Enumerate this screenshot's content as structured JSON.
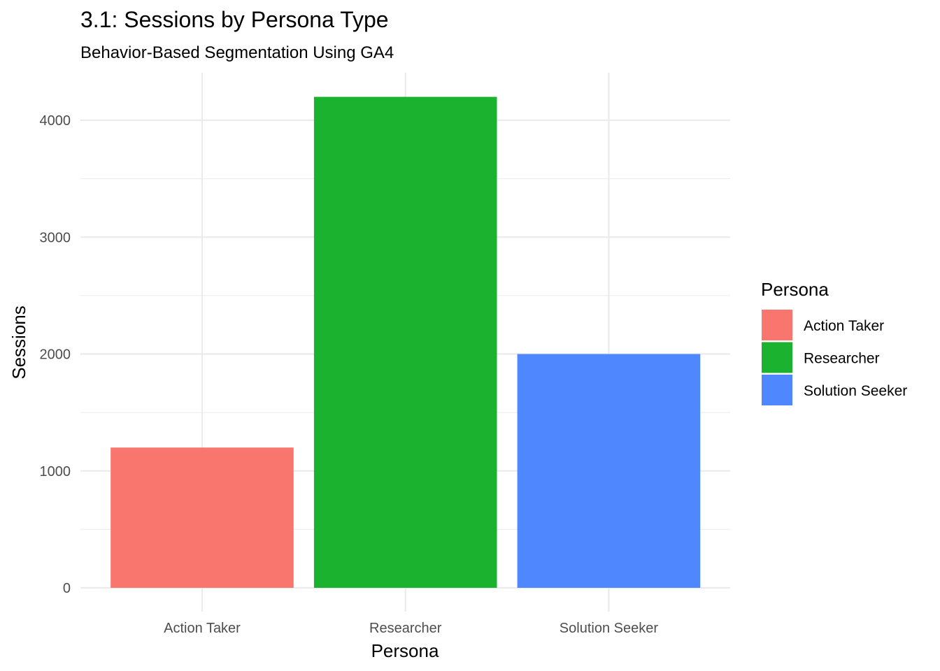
{
  "chart_data": {
    "type": "bar",
    "title": "3.1: Sessions by Persona Type",
    "subtitle": "Behavior-Based Segmentation Using GA4",
    "xlabel": "Persona",
    "ylabel": "Sessions",
    "categories": [
      "Action Taker",
      "Researcher",
      "Solution Seeker"
    ],
    "values": [
      1200,
      4200,
      2000
    ],
    "colors": [
      "#F8766D",
      "#1AB22E",
      "#4F87FF"
    ],
    "ylim": [
      0,
      4400
    ],
    "yticks": [
      0,
      1000,
      2000,
      3000,
      4000
    ],
    "ytick_labels": [
      "0",
      "1000",
      "2000",
      "3000",
      "4000"
    ],
    "grid": true,
    "legend": {
      "title": "Persona",
      "placement": "right",
      "entries": [
        "Action Taker",
        "Researcher",
        "Solution Seeker"
      ]
    }
  }
}
